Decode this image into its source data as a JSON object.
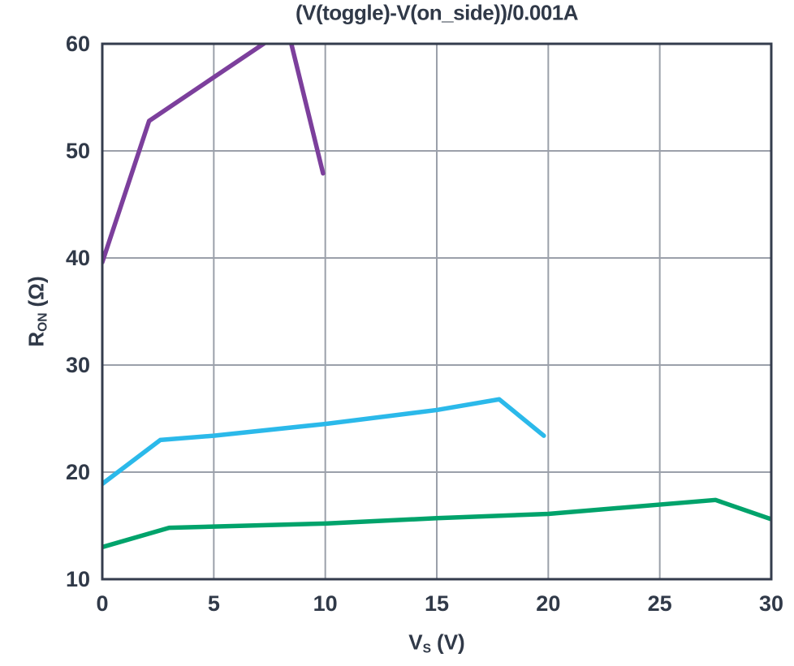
{
  "chart_data": {
    "type": "line",
    "title": "(V(toggle)-V(on_side))/0.001A",
    "xlabel": {
      "base": "V",
      "sub": "S",
      "unit": "(V)"
    },
    "ylabel": {
      "base": "R",
      "sub": "ON",
      "unit": "(Ω)"
    },
    "xlim": [
      0,
      30
    ],
    "ylim": [
      10,
      60
    ],
    "xticks": [
      0,
      5,
      10,
      15,
      20,
      25,
      30
    ],
    "yticks": [
      10,
      20,
      30,
      40,
      50,
      60
    ],
    "grid": true,
    "legend": "none",
    "clip_to_axes": true,
    "series": [
      {
        "name": "purple",
        "color": "#7C3F9C",
        "points": [
          [
            0,
            39.6
          ],
          [
            2.1,
            52.8
          ],
          [
            8.3,
            61.5
          ],
          [
            9.9,
            47.9
          ]
        ]
      },
      {
        "name": "cyan",
        "color": "#2BB9EA",
        "points": [
          [
            0,
            18.9
          ],
          [
            2.6,
            23.0
          ],
          [
            5,
            23.4
          ],
          [
            10,
            24.5
          ],
          [
            15,
            25.8
          ],
          [
            17.8,
            26.8
          ],
          [
            19.8,
            23.4
          ]
        ]
      },
      {
        "name": "green",
        "color": "#00A36B",
        "points": [
          [
            0,
            13.0
          ],
          [
            3,
            14.8
          ],
          [
            10,
            15.2
          ],
          [
            15,
            15.7
          ],
          [
            20,
            16.1
          ],
          [
            27.5,
            17.4
          ],
          [
            30,
            15.6
          ]
        ]
      }
    ],
    "style": {
      "text_color": "#303948",
      "grid_color": "#9BA0AA",
      "axis_color": "#343C4D",
      "background": "#FFFFFF"
    }
  }
}
